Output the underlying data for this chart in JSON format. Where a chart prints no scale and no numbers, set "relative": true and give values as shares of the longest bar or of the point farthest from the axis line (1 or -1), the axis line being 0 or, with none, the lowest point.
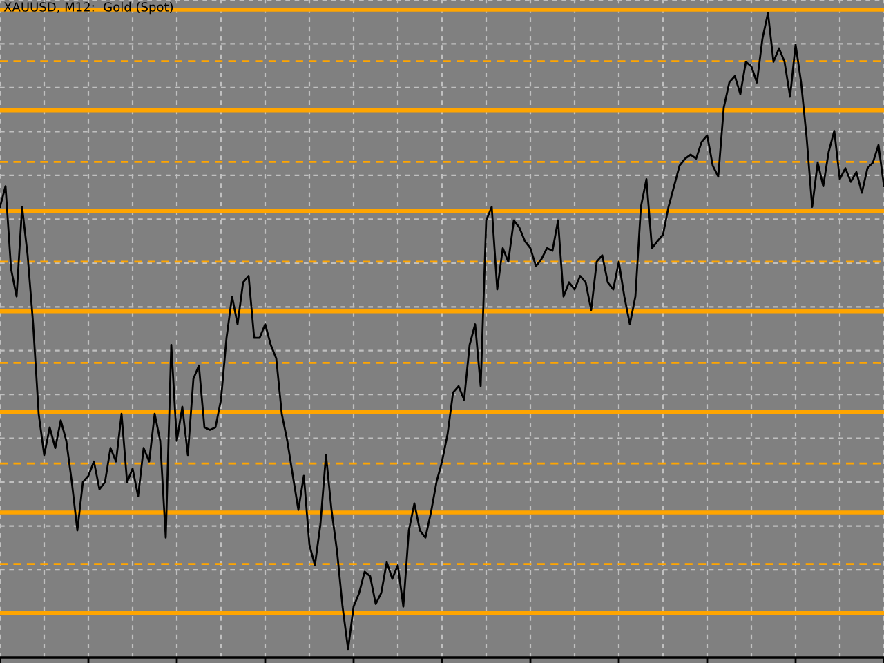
{
  "chart_data": {
    "type": "line",
    "title": "XAUUSD, M12:  Gold (Spot)",
    "relative": true,
    "grid": true,
    "color": "#000000",
    "categories": [
      null,
      null,
      null,
      null,
      null,
      null,
      null,
      null,
      null,
      null,
      null,
      null,
      null,
      null,
      null,
      null,
      null,
      null,
      null,
      null,
      null,
      null,
      null,
      null,
      null,
      null,
      null,
      null,
      null,
      null,
      null,
      null,
      null,
      null,
      null,
      null,
      null,
      null,
      null,
      null,
      null,
      null,
      null,
      null,
      null,
      null,
      null,
      null,
      null,
      null,
      null,
      null,
      null,
      null,
      null,
      null,
      null,
      null,
      null,
      null,
      null,
      null,
      null,
      null,
      null,
      null,
      null,
      null,
      null,
      null,
      null,
      null,
      null,
      null,
      null,
      null,
      null,
      null,
      null,
      null,
      null,
      null,
      null,
      null,
      null,
      null,
      null,
      null,
      null,
      null,
      null,
      null,
      null,
      null,
      null,
      null,
      null,
      null,
      null,
      null,
      null,
      null,
      null,
      null,
      null,
      null,
      null,
      null,
      null,
      null,
      null,
      null,
      null,
      null,
      null,
      null,
      null,
      null,
      null,
      null,
      null,
      null,
      null,
      null,
      null,
      null,
      null,
      null,
      null,
      null,
      null,
      null,
      null,
      null,
      null,
      null,
      null,
      null,
      null,
      null,
      null,
      null,
      null,
      null,
      null,
      null,
      null,
      null,
      null,
      null,
      null,
      null,
      null,
      null,
      null,
      null,
      null,
      null,
      null,
      null,
      null
    ],
    "values": [
      0.699,
      0.731,
      0.603,
      0.56,
      0.699,
      0.624,
      0.517,
      0.378,
      0.314,
      0.357,
      0.325,
      0.368,
      0.336,
      0.272,
      0.197,
      0.272,
      0.282,
      0.304,
      0.261,
      0.272,
      0.325,
      0.304,
      0.378,
      0.272,
      0.293,
      0.25,
      0.325,
      0.304,
      0.378,
      0.336,
      0.186,
      0.485,
      0.336,
      0.389,
      0.314,
      0.432,
      0.453,
      0.357,
      0.353,
      0.357,
      0.4,
      0.496,
      0.56,
      0.517,
      0.582,
      0.592,
      0.496,
      0.496,
      0.517,
      0.485,
      0.464,
      0.378,
      0.336,
      0.282,
      0.229,
      0.282,
      0.175,
      0.143,
      0.207,
      0.314,
      0.229,
      0.165,
      0.079,
      0.013,
      0.079,
      0.1,
      0.133,
      0.126,
      0.083,
      0.1,
      0.148,
      0.122,
      0.143,
      0.079,
      0.197,
      0.239,
      0.197,
      0.186,
      0.225,
      0.272,
      0.304,
      0.346,
      0.411,
      0.421,
      0.4,
      0.485,
      0.517,
      0.421,
      0.678,
      0.699,
      0.571,
      0.635,
      0.614,
      0.678,
      0.667,
      0.646,
      0.635,
      0.607,
      0.618,
      0.635,
      0.631,
      0.678,
      0.56,
      0.582,
      0.571,
      0.592,
      0.582,
      0.539,
      0.614,
      0.624,
      0.582,
      0.571,
      0.614,
      0.56,
      0.517,
      0.56,
      0.699,
      0.742,
      0.635,
      0.646,
      0.656,
      0.699,
      0.731,
      0.763,
      0.774,
      0.78,
      0.774,
      0.8,
      0.81,
      0.763,
      0.746,
      0.853,
      0.892,
      0.902,
      0.874,
      0.924,
      0.917,
      0.892,
      0.96,
      1.0,
      0.924,
      0.945,
      0.924,
      0.87,
      0.951,
      0.892,
      0.806,
      0.699,
      0.768,
      0.731,
      0.785,
      0.817,
      0.742,
      0.759,
      0.738,
      0.753,
      0.721,
      0.759,
      0.768,
      0.795,
      0.731
    ],
    "ref_lines": [
      {
        "axis": "y",
        "value": 1.005,
        "color": "#ffa500",
        "line_style": "solid"
      },
      {
        "axis": "y",
        "value": 0.925,
        "color": "#ffa500",
        "line_style": "dashed"
      },
      {
        "axis": "y",
        "value": 0.849,
        "color": "#ffa500",
        "line_style": "solid"
      },
      {
        "axis": "y",
        "value": 0.769,
        "color": "#ffa500",
        "line_style": "dashed"
      },
      {
        "axis": "y",
        "value": 0.693,
        "color": "#ffa500",
        "line_style": "solid"
      },
      {
        "axis": "y",
        "value": 0.614,
        "color": "#ffa500",
        "line_style": "dashed"
      },
      {
        "axis": "y",
        "value": 0.537,
        "color": "#ffa500",
        "line_style": "solid"
      },
      {
        "axis": "y",
        "value": 0.457,
        "color": "#ffa500",
        "line_style": "dashed"
      },
      {
        "axis": "y",
        "value": 0.381,
        "color": "#ffa500",
        "line_style": "solid"
      },
      {
        "axis": "y",
        "value": 0.301,
        "color": "#ffa500",
        "line_style": "dashed"
      },
      {
        "axis": "y",
        "value": 0.225,
        "color": "#ffa500",
        "line_style": "solid"
      },
      {
        "axis": "y",
        "value": 0.145,
        "color": "#ffa500",
        "line_style": "dashed"
      },
      {
        "axis": "y",
        "value": 0.069,
        "color": "#ffa500",
        "line_style": "solid"
      }
    ]
  }
}
